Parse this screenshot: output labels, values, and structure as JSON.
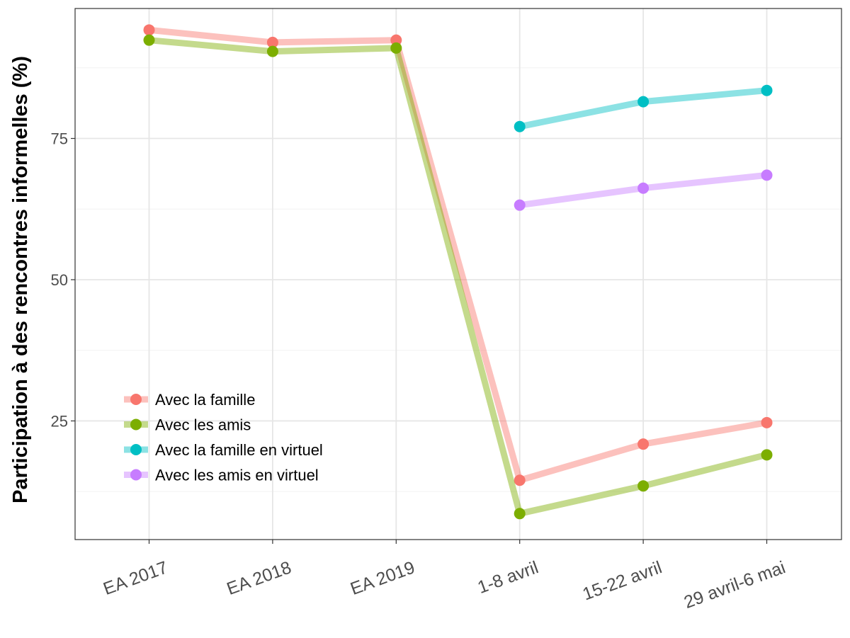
{
  "chart_data": {
    "type": "line",
    "title": "",
    "xlabel": "",
    "ylabel": "Participation à des rencontres informelles (%)",
    "categories": [
      "EA 2017",
      "EA 2018",
      "EA 2019",
      "1-8 avril",
      "15-22 avril",
      "29 avril-6 mai"
    ],
    "y_ticks": [
      25,
      50,
      75
    ],
    "ylim": [
      4,
      98
    ],
    "grid": true,
    "legend_position": "bottom-left",
    "series": [
      {
        "name": "Avec la famille",
        "color": "#F8766D",
        "values": [
          94.2,
          92.0,
          92.4,
          14.5,
          20.9,
          24.7
        ]
      },
      {
        "name": "Avec les amis",
        "color": "#7CAE00",
        "values": [
          92.4,
          90.4,
          91.0,
          8.6,
          13.5,
          19.0
        ]
      },
      {
        "name": "Avec la famille en virtuel",
        "color": "#00BFC4",
        "values": [
          null,
          null,
          null,
          77.1,
          81.5,
          83.5
        ]
      },
      {
        "name": "Avec les amis en virtuel",
        "color": "#C77CFF",
        "values": [
          null,
          null,
          null,
          63.2,
          66.2,
          68.5
        ]
      }
    ]
  }
}
